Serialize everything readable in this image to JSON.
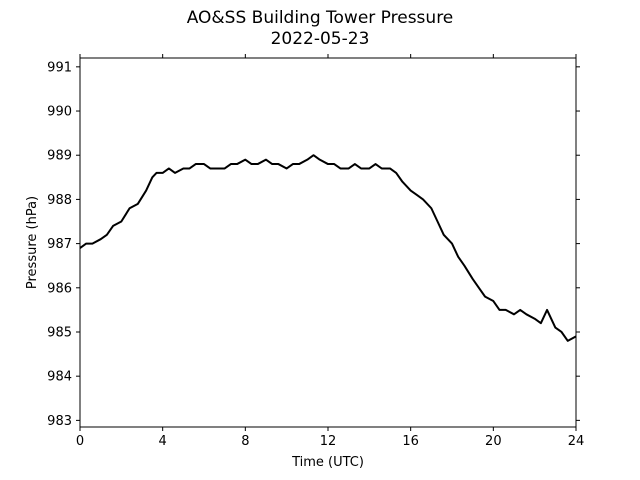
{
  "chart_data": {
    "type": "line",
    "title": "AO&SS Building Tower Pressure",
    "subtitle": "2022-05-23",
    "xlabel": "Time (UTC)",
    "ylabel": "Pressure (hPa)",
    "xlim": [
      0,
      24
    ],
    "ylim": [
      982.85,
      991.2
    ],
    "xticks": [
      0,
      4,
      8,
      12,
      16,
      20,
      24
    ],
    "yticks": [
      983,
      984,
      985,
      986,
      987,
      988,
      989,
      990,
      991
    ],
    "grid": false,
    "line_color": "#000000",
    "series": [
      {
        "x": [
          0,
          0.3,
          0.6,
          1,
          1.3,
          1.6,
          2,
          2.4,
          2.8,
          3.2,
          3.5,
          3.7,
          4,
          4.3,
          4.6,
          5,
          5.3,
          5.6,
          6,
          6.3,
          6.6,
          7,
          7.3,
          7.6,
          8,
          8.3,
          8.6,
          9,
          9.3,
          9.6,
          10,
          10.3,
          10.6,
          11,
          11.3,
          11.6,
          12,
          12.3,
          12.6,
          13,
          13.3,
          13.6,
          14,
          14.3,
          14.6,
          15,
          15.3,
          15.6,
          16,
          16.3,
          16.6,
          17,
          17.3,
          17.6,
          18,
          18.3,
          18.6,
          19,
          19.3,
          19.6,
          20,
          20.3,
          20.6,
          21,
          21.3,
          21.6,
          22,
          22.3,
          22.6,
          23,
          23.3,
          23.6,
          24
        ],
        "y": [
          986.9,
          987.0,
          987.0,
          987.1,
          987.2,
          987.4,
          987.5,
          987.8,
          987.9,
          988.2,
          988.5,
          988.6,
          988.6,
          988.7,
          988.6,
          988.7,
          988.7,
          988.8,
          988.8,
          988.7,
          988.7,
          988.7,
          988.8,
          988.8,
          988.9,
          988.8,
          988.8,
          988.9,
          988.8,
          988.8,
          988.7,
          988.8,
          988.8,
          988.9,
          989.0,
          988.9,
          988.8,
          988.8,
          988.7,
          988.7,
          988.8,
          988.7,
          988.7,
          988.8,
          988.7,
          988.7,
          988.6,
          988.4,
          988.2,
          988.1,
          988.0,
          987.8,
          987.5,
          987.2,
          987.0,
          986.7,
          986.5,
          986.2,
          986.0,
          985.8,
          985.7,
          985.5,
          985.5,
          985.4,
          985.5,
          985.4,
          985.3,
          985.2,
          985.5,
          985.1,
          985.0,
          984.8,
          984.9
        ]
      }
    ]
  }
}
